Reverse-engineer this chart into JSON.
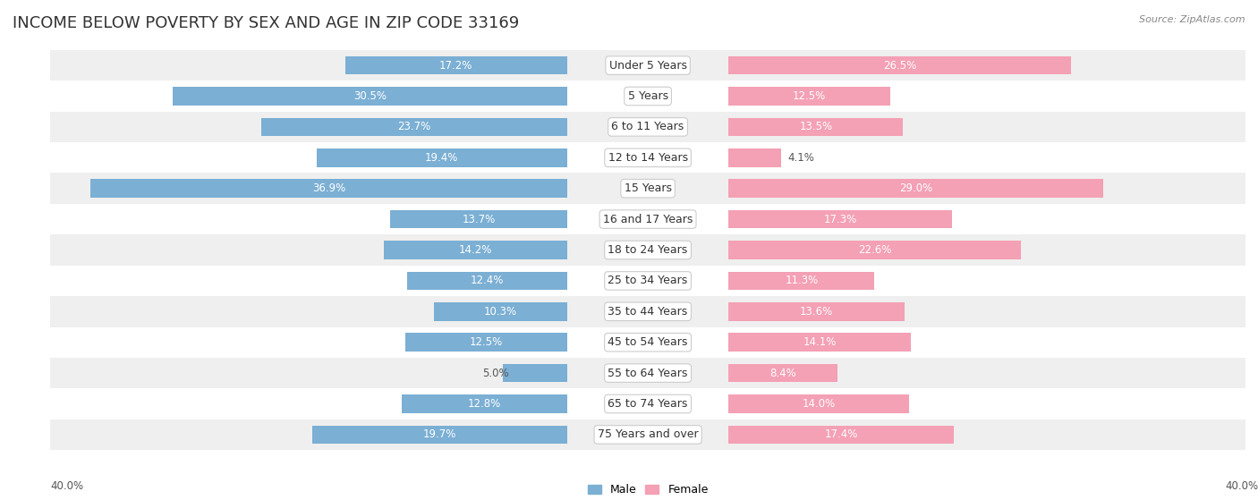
{
  "title": "INCOME BELOW POVERTY BY SEX AND AGE IN ZIP CODE 33169",
  "source": "Source: ZipAtlas.com",
  "categories": [
    "Under 5 Years",
    "5 Years",
    "6 to 11 Years",
    "12 to 14 Years",
    "15 Years",
    "16 and 17 Years",
    "18 to 24 Years",
    "25 to 34 Years",
    "35 to 44 Years",
    "45 to 54 Years",
    "55 to 64 Years",
    "65 to 74 Years",
    "75 Years and over"
  ],
  "male": [
    17.2,
    30.5,
    23.7,
    19.4,
    36.9,
    13.7,
    14.2,
    12.4,
    10.3,
    12.5,
    5.0,
    12.8,
    19.7
  ],
  "female": [
    26.5,
    12.5,
    13.5,
    4.1,
    29.0,
    17.3,
    22.6,
    11.3,
    13.6,
    14.1,
    8.4,
    14.0,
    17.4
  ],
  "male_color": "#7bafd4",
  "female_color": "#f4a0b5",
  "background_row_odd": "#efefef",
  "background_row_even": "#ffffff",
  "axis_max": 40.0,
  "bar_height": 0.6,
  "title_fontsize": 13,
  "label_fontsize": 8.5,
  "category_fontsize": 9,
  "legend_fontsize": 9,
  "source_fontsize": 8,
  "label_inside_threshold": 7.0
}
